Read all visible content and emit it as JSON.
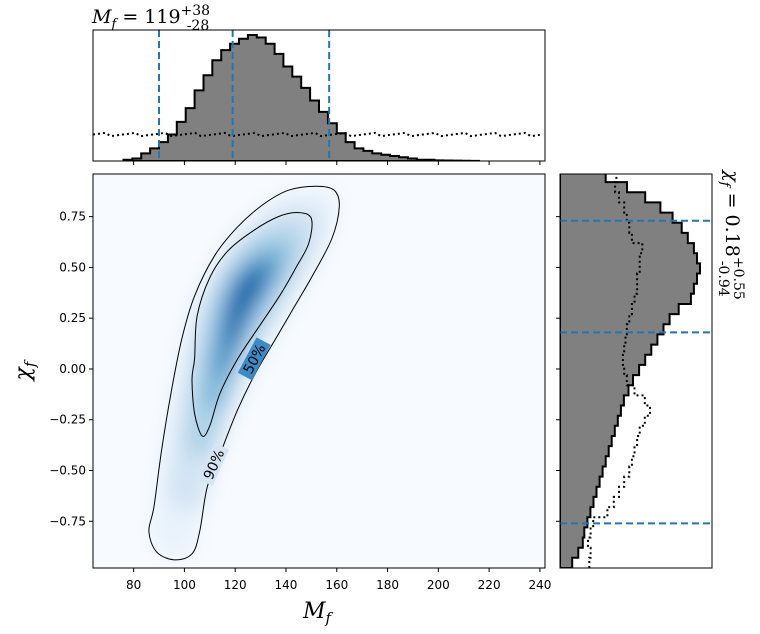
{
  "chart_data": [
    {
      "type": "heatmap",
      "panel": "joint",
      "xlabel": "M_f",
      "ylabel": "χ_f",
      "xlim": [
        64,
        242
      ],
      "ylim": [
        -0.98,
        0.96
      ],
      "xticks": [
        80,
        100,
        120,
        140,
        160,
        180,
        200,
        220,
        240
      ],
      "xtick_labels": [
        "80",
        "100",
        "120",
        "140",
        "160",
        "180",
        "200",
        "220",
        "240"
      ],
      "yticks": [
        0.75,
        0.5,
        0.25,
        0.0,
        -0.25,
        -0.5,
        -0.75
      ],
      "ytick_labels": [
        "0.75",
        "0.50",
        "0.25",
        "0.00",
        "−0.25",
        "−0.50",
        "−0.75"
      ],
      "colormap": "Blues",
      "density_peak": {
        "x": 124,
        "y": 0.38
      },
      "contours": [
        {
          "label": "50%",
          "points": [
            [
              104,
              0.05
            ],
            [
              105,
              0.26
            ],
            [
              110,
              0.45
            ],
            [
              117,
              0.58
            ],
            [
              127,
              0.68
            ],
            [
              137,
              0.75
            ],
            [
              145,
              0.77
            ],
            [
              150,
              0.74
            ],
            [
              149,
              0.62
            ],
            [
              144,
              0.5
            ],
            [
              138,
              0.37
            ],
            [
              130,
              0.22
            ],
            [
              121,
              0.05
            ],
            [
              114,
              -0.12
            ],
            [
              110,
              -0.28
            ],
            [
              107,
              -0.33
            ],
            [
              104,
              -0.22
            ],
            [
              103,
              -0.05
            ]
          ]
        },
        {
          "label": "90%",
          "points": [
            [
              88,
              -0.68
            ],
            [
              91,
              -0.4
            ],
            [
              95,
              -0.1
            ],
            [
              99,
              0.15
            ],
            [
              104,
              0.36
            ],
            [
              112,
              0.56
            ],
            [
              121,
              0.7
            ],
            [
              131,
              0.81
            ],
            [
              141,
              0.88
            ],
            [
              152,
              0.9
            ],
            [
              159,
              0.88
            ],
            [
              161,
              0.8
            ],
            [
              158,
              0.64
            ],
            [
              150,
              0.45
            ],
            [
              143,
              0.3
            ],
            [
              136,
              0.15
            ],
            [
              128,
              -0.02
            ],
            [
              121,
              -0.2
            ],
            [
              114,
              -0.42
            ],
            [
              109,
              -0.58
            ],
            [
              106,
              -0.8
            ],
            [
              103,
              -0.91
            ],
            [
              96,
              -0.94
            ],
            [
              89,
              -0.9
            ],
            [
              86,
              -0.8
            ]
          ]
        }
      ],
      "contour_color": "#000000"
    },
    {
      "type": "histogram",
      "panel": "marginal-x",
      "title": "M_f = 119^{+38}_{-28}",
      "xlim": [
        64,
        242
      ],
      "bin_edges_start": 76,
      "bin_width": 3.5,
      "counts": [
        0.01,
        0.02,
        0.06,
        0.1,
        0.15,
        0.21,
        0.31,
        0.42,
        0.56,
        0.68,
        0.8,
        0.88,
        0.93,
        0.97,
        1.0,
        0.98,
        0.93,
        0.85,
        0.75,
        0.67,
        0.58,
        0.48,
        0.39,
        0.3,
        0.22,
        0.15,
        0.1,
        0.08,
        0.06,
        0.05,
        0.04,
        0.03,
        0.02,
        0.01,
        0.01,
        0.005,
        0.004,
        0.003,
        0.002,
        0.001
      ],
      "prior_level": 0.21,
      "quantile_lines": [
        90,
        119,
        157
      ],
      "fill_color": "#808080",
      "line_color": "#1f77b4"
    },
    {
      "type": "histogram",
      "panel": "marginal-y",
      "title": "χ_f = 0.18^{+0.55}_{-0.94}",
      "ylim": [
        -0.98,
        0.96
      ],
      "bin_edges_start": -0.98,
      "bin_width": 0.05,
      "counts": [
        0.08,
        0.12,
        0.15,
        0.16,
        0.18,
        0.2,
        0.22,
        0.24,
        0.26,
        0.28,
        0.3,
        0.32,
        0.34,
        0.36,
        0.38,
        0.4,
        0.42,
        0.45,
        0.48,
        0.52,
        0.56,
        0.6,
        0.64,
        0.68,
        0.72,
        0.78,
        0.86,
        0.88,
        0.9,
        0.92,
        0.9,
        0.88,
        0.84,
        0.8,
        0.74,
        0.66,
        0.56,
        0.44,
        0.3,
        0.1
      ],
      "prior": [
        0.27,
        0.28,
        0.26,
        0.28,
        0.3,
        0.41,
        0.46,
        0.5,
        0.54,
        0.58,
        0.6,
        0.62,
        0.64,
        0.66,
        0.7,
        0.74,
        0.7,
        0.62,
        0.56,
        0.54,
        0.53,
        0.54,
        0.55,
        0.56,
        0.58,
        0.6,
        0.62,
        0.64,
        0.64,
        0.66,
        0.66,
        0.68,
        0.6,
        0.58,
        0.56,
        0.54,
        0.5,
        0.47,
        0.48,
        0.52
      ],
      "quantile_lines": [
        -0.76,
        0.18,
        0.73
      ],
      "fill_color": "#808080",
      "line_color": "#1f77b4"
    }
  ]
}
